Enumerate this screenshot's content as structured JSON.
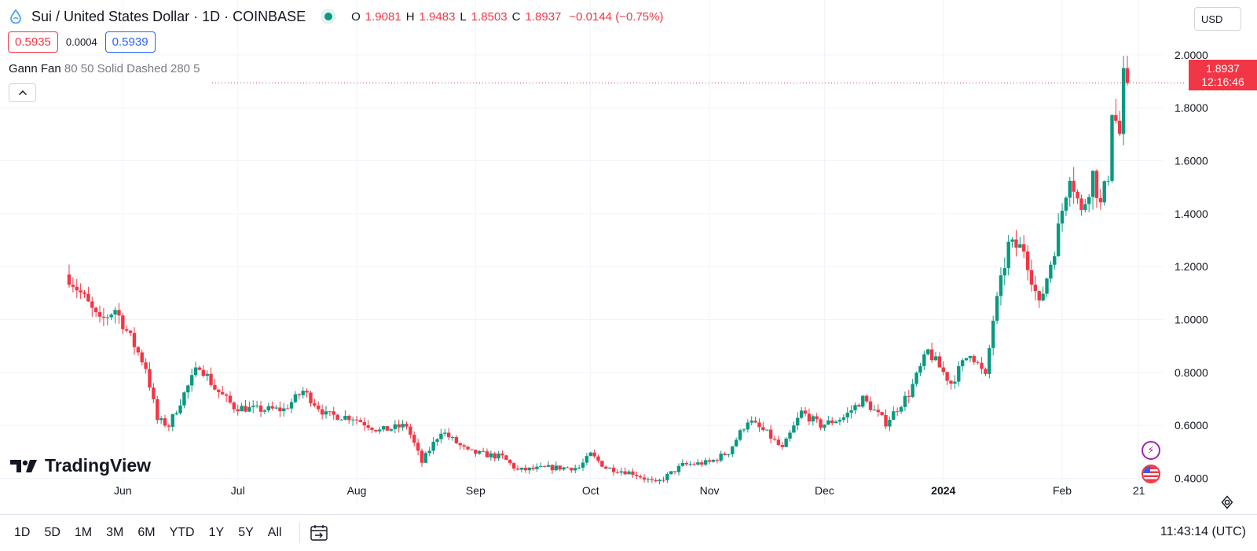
{
  "header": {
    "title": "Sui / United States Dollar · 1D · COINBASE",
    "ohlc": [
      {
        "key": "O",
        "value": "1.9081"
      },
      {
        "key": "H",
        "value": "1.9483"
      },
      {
        "key": "L",
        "value": "1.8503"
      },
      {
        "key": "C",
        "value": "1.8937"
      }
    ],
    "change": "−0.0144 (−0.75%)",
    "currency": "USD"
  },
  "quote": {
    "bid": "0.5935",
    "spread": "0.0004",
    "ask": "0.5939"
  },
  "study": {
    "name": "Gann Fan",
    "params": "80 50 Solid Dashed 280 5"
  },
  "last_price": {
    "price": "1.8937",
    "countdown": "12:16:46"
  },
  "brand": {
    "name": "TradingView"
  },
  "bottom": {
    "ranges": [
      "1D",
      "5D",
      "1M",
      "3M",
      "6M",
      "YTD",
      "1Y",
      "5Y",
      "All"
    ],
    "clock": "11:43:14 (UTC)"
  },
  "colors": {
    "up": "#089981",
    "down": "#f23645",
    "grid": "#f0f3fa",
    "axis_text": "#131722"
  },
  "chart_data": {
    "type": "candlestick",
    "interval": "1D",
    "y_ticks": [
      "0.4000",
      "0.6000",
      "0.8000",
      "1.0000",
      "1.2000",
      "1.4000",
      "1.6000",
      "1.8000",
      "2.0000"
    ],
    "ylim": [
      0.36,
      2.05
    ],
    "x_labels": [
      "Jun",
      "Jul",
      "Aug",
      "Sep",
      "Oct",
      "Nov",
      "Dec",
      "2024",
      "Feb",
      "21"
    ],
    "x_start": "2023-05-18",
    "x_end": "2024-02-18",
    "knots": [
      {
        "date": "2023-05-18",
        "close": 1.16
      },
      {
        "date": "2023-05-22",
        "close": 1.08
      },
      {
        "date": "2023-05-26",
        "close": 0.99
      },
      {
        "date": "2023-05-30",
        "close": 1.04
      },
      {
        "date": "2023-06-03",
        "close": 0.93
      },
      {
        "date": "2023-06-07",
        "close": 0.82
      },
      {
        "date": "2023-06-10",
        "close": 0.62
      },
      {
        "date": "2023-06-13",
        "close": 0.6
      },
      {
        "date": "2023-06-17",
        "close": 0.72
      },
      {
        "date": "2023-06-21",
        "close": 0.83
      },
      {
        "date": "2023-06-25",
        "close": 0.74
      },
      {
        "date": "2023-06-30",
        "close": 0.67
      },
      {
        "date": "2023-07-06",
        "close": 0.66
      },
      {
        "date": "2023-07-13",
        "close": 0.66
      },
      {
        "date": "2023-07-18",
        "close": 0.73
      },
      {
        "date": "2023-07-24",
        "close": 0.64
      },
      {
        "date": "2023-07-31",
        "close": 0.63
      },
      {
        "date": "2023-08-07",
        "close": 0.58
      },
      {
        "date": "2023-08-14",
        "close": 0.6
      },
      {
        "date": "2023-08-18",
        "close": 0.46
      },
      {
        "date": "2023-08-23",
        "close": 0.58
      },
      {
        "date": "2023-08-30",
        "close": 0.5
      },
      {
        "date": "2023-09-08",
        "close": 0.48
      },
      {
        "date": "2023-09-12",
        "close": 0.43
      },
      {
        "date": "2023-09-20",
        "close": 0.44
      },
      {
        "date": "2023-09-28",
        "close": 0.44
      },
      {
        "date": "2023-10-01",
        "close": 0.49
      },
      {
        "date": "2023-10-05",
        "close": 0.44
      },
      {
        "date": "2023-10-12",
        "close": 0.42
      },
      {
        "date": "2023-10-18",
        "close": 0.38
      },
      {
        "date": "2023-10-25",
        "close": 0.45
      },
      {
        "date": "2023-11-01",
        "close": 0.46
      },
      {
        "date": "2023-11-06",
        "close": 0.5
      },
      {
        "date": "2023-11-11",
        "close": 0.62
      },
      {
        "date": "2023-11-16",
        "close": 0.57
      },
      {
        "date": "2023-11-20",
        "close": 0.51
      },
      {
        "date": "2023-11-25",
        "close": 0.65
      },
      {
        "date": "2023-11-30",
        "close": 0.6
      },
      {
        "date": "2023-12-06",
        "close": 0.63
      },
      {
        "date": "2023-12-11",
        "close": 0.7
      },
      {
        "date": "2023-12-17",
        "close": 0.61
      },
      {
        "date": "2023-12-23",
        "close": 0.72
      },
      {
        "date": "2023-12-28",
        "close": 0.88
      },
      {
        "date": "2024-01-03",
        "close": 0.76
      },
      {
        "date": "2024-01-08",
        "close": 0.88
      },
      {
        "date": "2024-01-12",
        "close": 0.78
      },
      {
        "date": "2024-01-14",
        "close": 1.0
      },
      {
        "date": "2024-01-18",
        "close": 1.28
      },
      {
        "date": "2024-01-22",
        "close": 1.27
      },
      {
        "date": "2024-01-26",
        "close": 1.05
      },
      {
        "date": "2024-01-30",
        "close": 1.27
      },
      {
        "date": "2024-02-03",
        "close": 1.56
      },
      {
        "date": "2024-02-06",
        "close": 1.4
      },
      {
        "date": "2024-02-09",
        "close": 1.55
      },
      {
        "date": "2024-02-11",
        "close": 1.43
      },
      {
        "date": "2024-02-13",
        "close": 1.55
      },
      {
        "date": "2024-02-14",
        "close": 1.8
      },
      {
        "date": "2024-02-16",
        "close": 1.7
      },
      {
        "date": "2024-02-17",
        "close": 1.91
      },
      {
        "date": "2024-02-18",
        "close": 1.8937
      }
    ]
  }
}
